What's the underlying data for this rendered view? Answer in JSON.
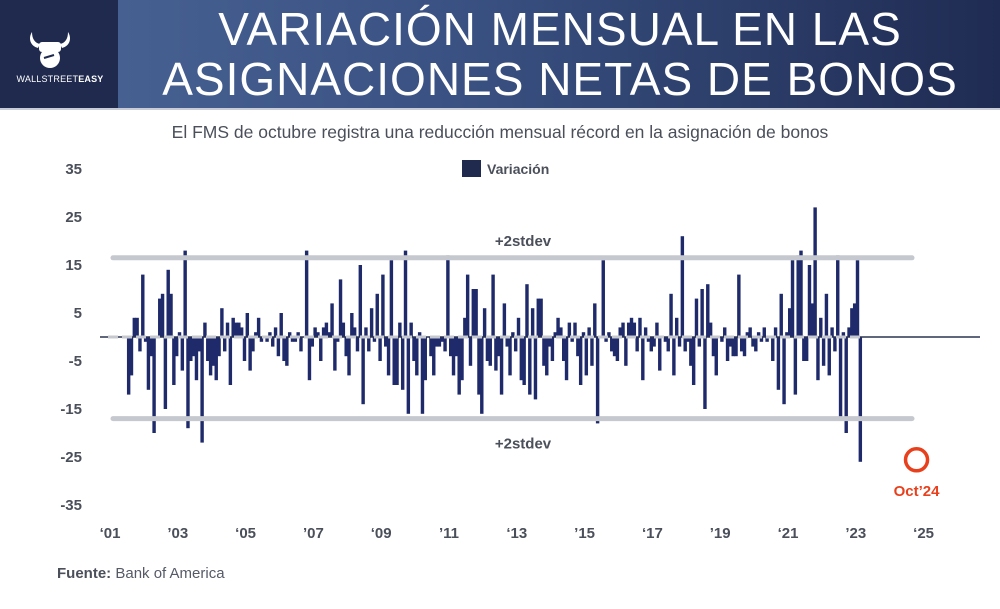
{
  "header": {
    "title_line1": "VARIACIÓN MENSUAL EN LAS",
    "title_line2": "ASIGNACIONES NETAS DE BONOS",
    "logo_text_regular": "WALLSTREET",
    "logo_text_bold": "EASY",
    "logo_icon": "fist-bull-horns-icon"
  },
  "subtitle": "El FMS de octubre registra una reducción mensual récord en la asignación de bonos",
  "source_label": "Fuente:",
  "source_value": "Bank of America",
  "colors": {
    "bar": "#1f2a6b",
    "stdev_line": "#c5c8ce",
    "highlight": "#e8401c",
    "header_dark": "#1f2a4e"
  },
  "chart_data": {
    "type": "bar",
    "title": "El FMS de octubre registra una reducción mensual récord en la asignación de bonos",
    "xlabel": "",
    "ylabel": "",
    "ylim": [
      -35,
      35
    ],
    "y_ticks": [
      35,
      25,
      15,
      5,
      -5,
      -15,
      -25,
      -35
    ],
    "x_ticks": [
      "‘01",
      "’03",
      "‘05",
      "’07",
      "‘09",
      "’11",
      "‘13",
      "’15",
      "‘17",
      "’19",
      "‘21",
      "’23",
      "‘25"
    ],
    "x_tick_years": [
      2001,
      2003,
      2005,
      2007,
      2009,
      2011,
      2013,
      2015,
      2017,
      2019,
      2021,
      2023,
      2025
    ],
    "legend": [
      {
        "name": "Variación",
        "position": "top-center"
      }
    ],
    "grid": false,
    "start": "2001-07",
    "end": "2024-10",
    "series": [
      {
        "name": "Variación",
        "values": [
          -12,
          -8,
          4,
          4,
          -3,
          13,
          -1,
          -11,
          -4,
          -20,
          0,
          8,
          9,
          -15,
          14,
          9,
          -10,
          -4,
          1,
          -7,
          18,
          -19,
          -5,
          -4,
          -9,
          -3,
          -22,
          3,
          -5,
          -8,
          -6,
          -9,
          -4,
          6,
          -3,
          3,
          -10,
          4,
          3,
          3,
          2,
          -5,
          5,
          -7,
          -3,
          1,
          4,
          -1,
          0,
          -1,
          1,
          -2,
          2,
          -4,
          5,
          -5,
          -6,
          1,
          -1,
          -1,
          1,
          -3,
          0,
          18,
          -9,
          -2,
          2,
          1,
          -5,
          2,
          3,
          1,
          7,
          -7,
          -1,
          12,
          3,
          -4,
          -8,
          5,
          2,
          -3,
          15,
          -14,
          2,
          -3,
          6,
          -1,
          9,
          -5,
          13,
          -2,
          -8,
          16,
          -10,
          -10,
          3,
          -11,
          18,
          -16,
          3,
          -5,
          -8,
          1,
          -16,
          -9,
          0,
          -4,
          -8,
          -2,
          -2,
          -1,
          -3,
          17,
          -4,
          -8,
          -4,
          -12,
          -9,
          4,
          13,
          -6,
          10,
          10,
          -12,
          -16,
          6,
          -5,
          -6,
          13,
          -7,
          -4,
          -12,
          7,
          -2,
          -8,
          1,
          -3,
          4,
          -9,
          -10,
          11,
          -12,
          6,
          -13,
          8,
          8,
          -6,
          -8,
          -2,
          -5,
          1,
          4,
          2,
          -5,
          -9,
          3,
          -1,
          3,
          -4,
          -10,
          1,
          -8,
          2,
          -6,
          7,
          -18,
          0,
          16,
          -1,
          1,
          -3,
          -4,
          -5,
          2,
          3,
          -6,
          3,
          4,
          3,
          -3,
          4,
          -9,
          2,
          -1,
          -3,
          -2,
          3,
          -7,
          0,
          -1,
          -3,
          9,
          -8,
          4,
          -2,
          21,
          -3,
          -1,
          -6,
          -10,
          8,
          -2,
          10,
          -15,
          11,
          3,
          -4,
          -8,
          0,
          -1,
          2,
          -5,
          -2,
          -4,
          -4,
          13,
          -3,
          -4,
          1,
          2,
          -2,
          -3,
          1,
          -1,
          2,
          -1,
          0,
          -5,
          2,
          -11,
          9,
          -14,
          1,
          6,
          16,
          -12,
          17,
          18,
          -5,
          -5,
          15,
          7,
          27,
          -9,
          4,
          -6,
          9,
          -8,
          2,
          -3,
          17,
          -17,
          1,
          -20,
          2,
          6,
          7,
          16,
          -26
        ]
      }
    ],
    "reference_lines": [
      {
        "label": "+2stdev",
        "value": 16.5
      },
      {
        "label": "+2stdev",
        "value": -17
      }
    ],
    "zero_line": 0,
    "annotations": [
      {
        "label": "Oct’24",
        "target": "2024-10",
        "value": -26,
        "marker": "red-circle"
      }
    ]
  }
}
